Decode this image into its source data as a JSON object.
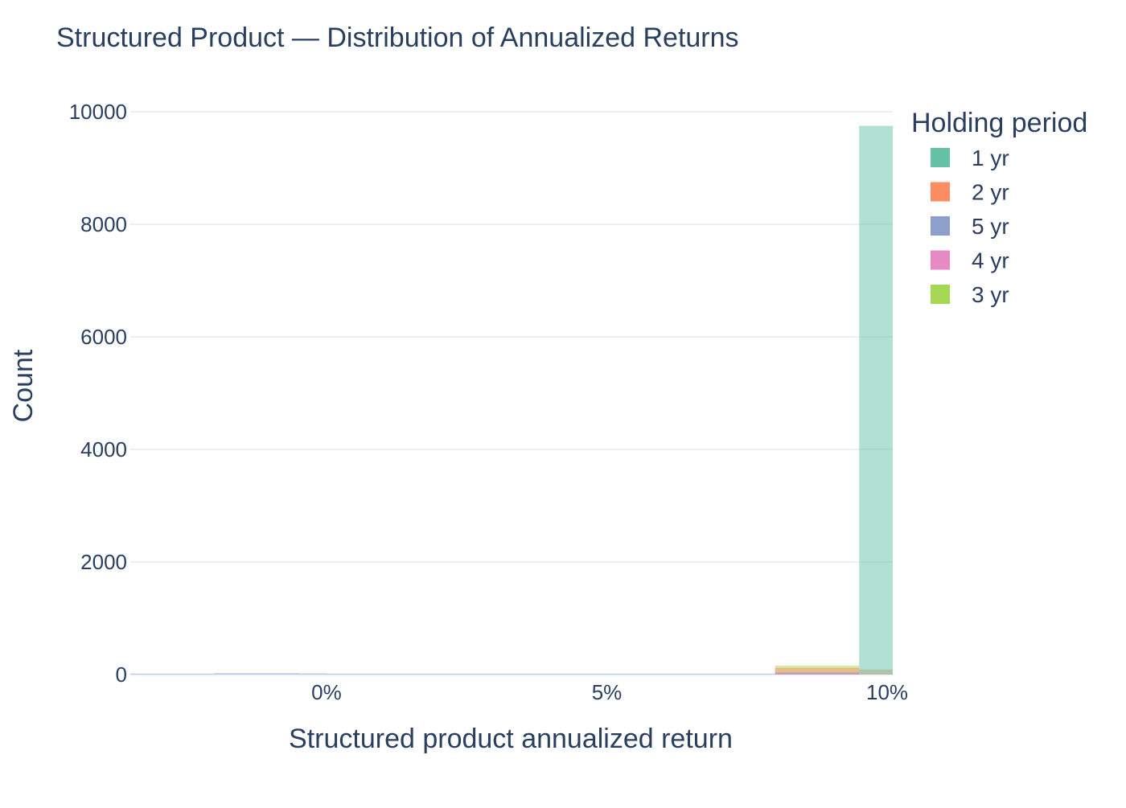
{
  "chart_data": {
    "type": "bar",
    "title": "Structured Product — Distribution of Annualized Returns",
    "xlabel": "Structured product annualized return",
    "ylabel": "Count",
    "xlim": [
      -0.035,
      0.101
    ],
    "ylim": [
      0,
      10000
    ],
    "x_ticks": [
      {
        "value": 0.0,
        "label": "0%"
      },
      {
        "value": 0.05,
        "label": "5%"
      },
      {
        "value": 0.1,
        "label": "10%"
      }
    ],
    "y_ticks": [
      {
        "value": 0,
        "label": "0"
      },
      {
        "value": 2000,
        "label": "2000"
      },
      {
        "value": 4000,
        "label": "4000"
      },
      {
        "value": 6000,
        "label": "6000"
      },
      {
        "value": 8000,
        "label": "8000"
      },
      {
        "value": 10000,
        "label": "10000"
      }
    ],
    "grid": true,
    "barmode": "overlay",
    "legend": {
      "title": "Holding period",
      "placement": "top-right",
      "items": [
        {
          "name": "1 yr",
          "color": "#66c2a5"
        },
        {
          "name": "2 yr",
          "color": "#fc8d62"
        },
        {
          "name": "5 yr",
          "color": "#8da0cb"
        },
        {
          "name": "4 yr",
          "color": "#e78ac3"
        },
        {
          "name": "3 yr",
          "color": "#a6d854"
        }
      ]
    },
    "opacity": 0.5,
    "series": [
      {
        "name": "3 yr",
        "color": "#a6d854",
        "bins": [
          {
            "x0": 0.08,
            "x1": 0.095,
            "count": 160
          }
        ]
      },
      {
        "name": "2 yr",
        "color": "#fc8d62",
        "bins": [
          {
            "x0": 0.08,
            "x1": 0.095,
            "count": 120
          },
          {
            "x0": 0.095,
            "x1": 0.101,
            "count": 90
          }
        ]
      },
      {
        "name": "4 yr",
        "color": "#e78ac3",
        "bins": [
          {
            "x0": 0.08,
            "x1": 0.095,
            "count": 40
          }
        ]
      },
      {
        "name": "5 yr",
        "color": "#8da0cb",
        "bins": [
          {
            "x0": -0.035,
            "x1": -0.02,
            "count": 10
          },
          {
            "x0": -0.02,
            "x1": -0.005,
            "count": 25
          },
          {
            "x0": -0.005,
            "x1": 0.0,
            "count": 20
          },
          {
            "x0": 0.0,
            "x1": 0.08,
            "count": 5
          },
          {
            "x0": 0.08,
            "x1": 0.095,
            "count": 30
          }
        ]
      },
      {
        "name": "1 yr",
        "color": "#66c2a5",
        "bins": [
          {
            "x0": 0.095,
            "x1": 0.101,
            "count": 9750
          }
        ]
      }
    ]
  }
}
